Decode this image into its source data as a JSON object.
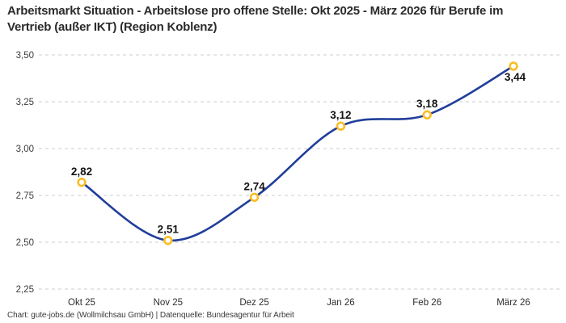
{
  "header": {
    "title": "Arbeitsmarkt Situation - Arbeitslose pro offene Stelle: Okt 2025 - März 2026 für Berufe im Vertrieb (außer IKT) (Region Koblenz)"
  },
  "footer": {
    "credit": "Chart: gute-jobs.de (Wollmilchsau GmbH) | Datenquelle: Bundesagentur für Arbeit"
  },
  "chart_data": {
    "type": "line",
    "title": "Arbeitsmarkt Situation - Arbeitslose pro offene Stelle: Okt 2025 - März 2026 für Berufe im Vertrieb (außer IKT) (Region Koblenz)",
    "categories": [
      "Okt 25",
      "Nov 25",
      "Dez 25",
      "Jan 26",
      "Feb 26",
      "März 26"
    ],
    "values": [
      2.82,
      2.51,
      2.74,
      3.12,
      3.18,
      3.44
    ],
    "value_labels": [
      "2,82",
      "2,51",
      "2,74",
      "3,12",
      "3,18",
      "3,44"
    ],
    "label_positions": [
      "above",
      "above",
      "above",
      "above",
      "above",
      "below"
    ],
    "y_ticks": [
      "3,50",
      "3,25",
      "3,00",
      "2,75",
      "2,50",
      "2,25"
    ],
    "y_tick_values": [
      3.5,
      3.25,
      3.0,
      2.75,
      2.5,
      2.25
    ],
    "ylim": [
      2.25,
      3.5
    ],
    "xlabel": "",
    "ylabel": "",
    "grid": "horizontal-dashed",
    "legend": "none",
    "curve": "smooth",
    "colors": {
      "line": "#213E9A",
      "marker_ring": "#F9BE25",
      "marker_fill": "#FFFFFF",
      "gridline": "#CCCCCC",
      "tick_text": "#3C3C3C",
      "data_label": "#141414"
    }
  }
}
